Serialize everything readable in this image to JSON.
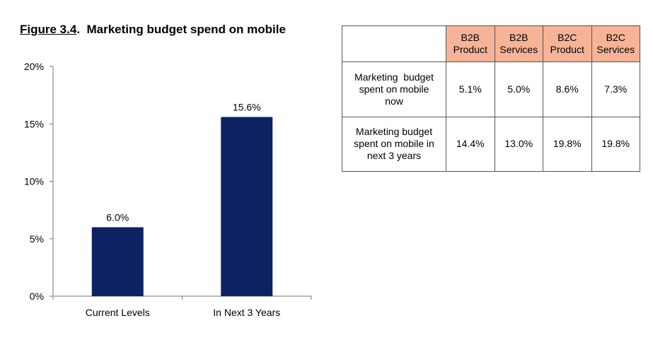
{
  "title": {
    "figure": "Figure 3.4",
    "separator": ".",
    "text": "Marketing budget spend on mobile"
  },
  "chart_data": {
    "type": "bar",
    "title": "Marketing budget spend on mobile",
    "categories": [
      "Current Levels",
      "In Next 3 Years"
    ],
    "values": [
      6.0,
      15.6
    ],
    "value_labels": [
      "6.0%",
      "15.6%"
    ],
    "ylim": [
      0,
      20
    ],
    "yticks": [
      "0%",
      "5%",
      "10%",
      "15%",
      "20%"
    ],
    "grid": false,
    "bar_color": "#0d2260"
  },
  "table": {
    "header_color": "#f7b397",
    "columns": [
      [
        "B2B",
        "Product"
      ],
      [
        "B2B",
        "Services"
      ],
      [
        "B2C",
        "Product"
      ],
      [
        "B2C",
        "Services"
      ]
    ],
    "rows": [
      {
        "label": [
          "Marketing  budget",
          "spent on mobile",
          "now"
        ],
        "values": [
          "5.1%",
          "5.0%",
          "8.6%",
          "7.3%"
        ]
      },
      {
        "label": [
          "Marketing budget",
          "spent on mobile in",
          "next 3 years"
        ],
        "values": [
          "14.4%",
          "13.0%",
          "19.8%",
          "19.8%"
        ]
      }
    ]
  }
}
